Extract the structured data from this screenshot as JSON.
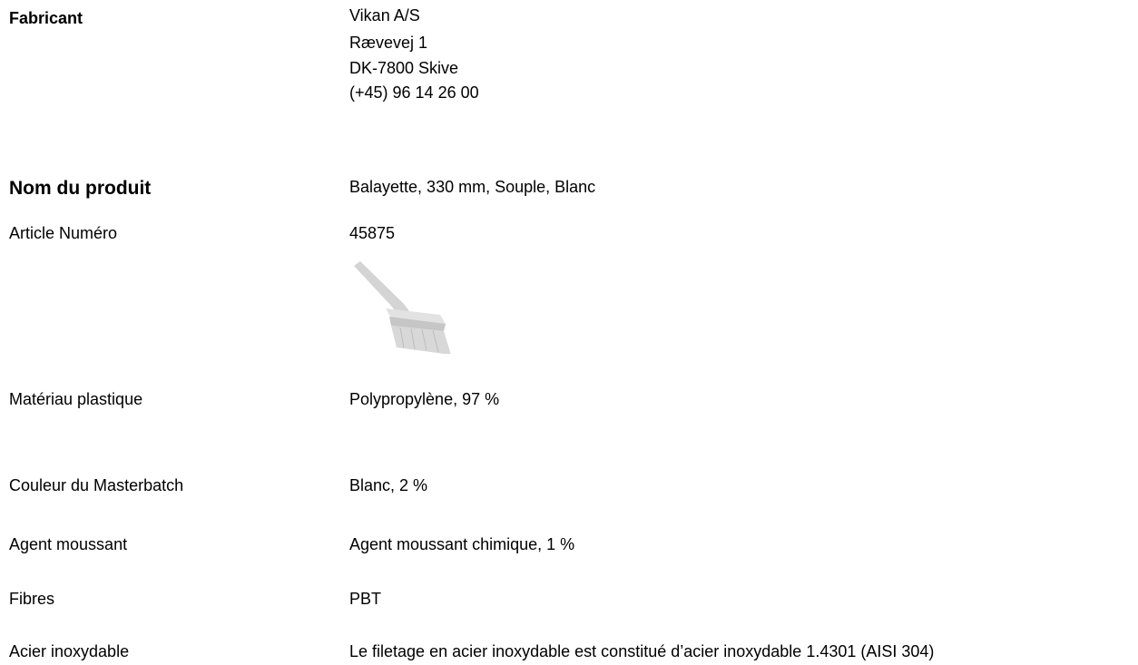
{
  "manufacturer": {
    "label": "Fabricant",
    "lines": [
      "Vikan A/S",
      "Rævevej 1",
      "DK-7800 Skive",
      "(+45) 96 14 26 00"
    ]
  },
  "product": {
    "label": "Nom du produit",
    "value": "Balayette, 330 mm, Souple, Blanc"
  },
  "article": {
    "label": "Article Numéro",
    "value": "45875"
  },
  "rows": [
    {
      "label": "Matériau plastique",
      "value": "Polypropylène, 97 %"
    },
    {
      "label": "Couleur du Masterbatch",
      "value": "Blanc, 2 %"
    },
    {
      "label": "Agent moussant",
      "value": "Agent moussant chimique, 1 %"
    },
    {
      "label": "Fibres",
      "value": "PBT"
    },
    {
      "label": "Acier inoxydable",
      "value": "Le filetage en acier inoxydable est constitué d’acier inoxydable 1.4301 (AISI 304)"
    }
  ]
}
